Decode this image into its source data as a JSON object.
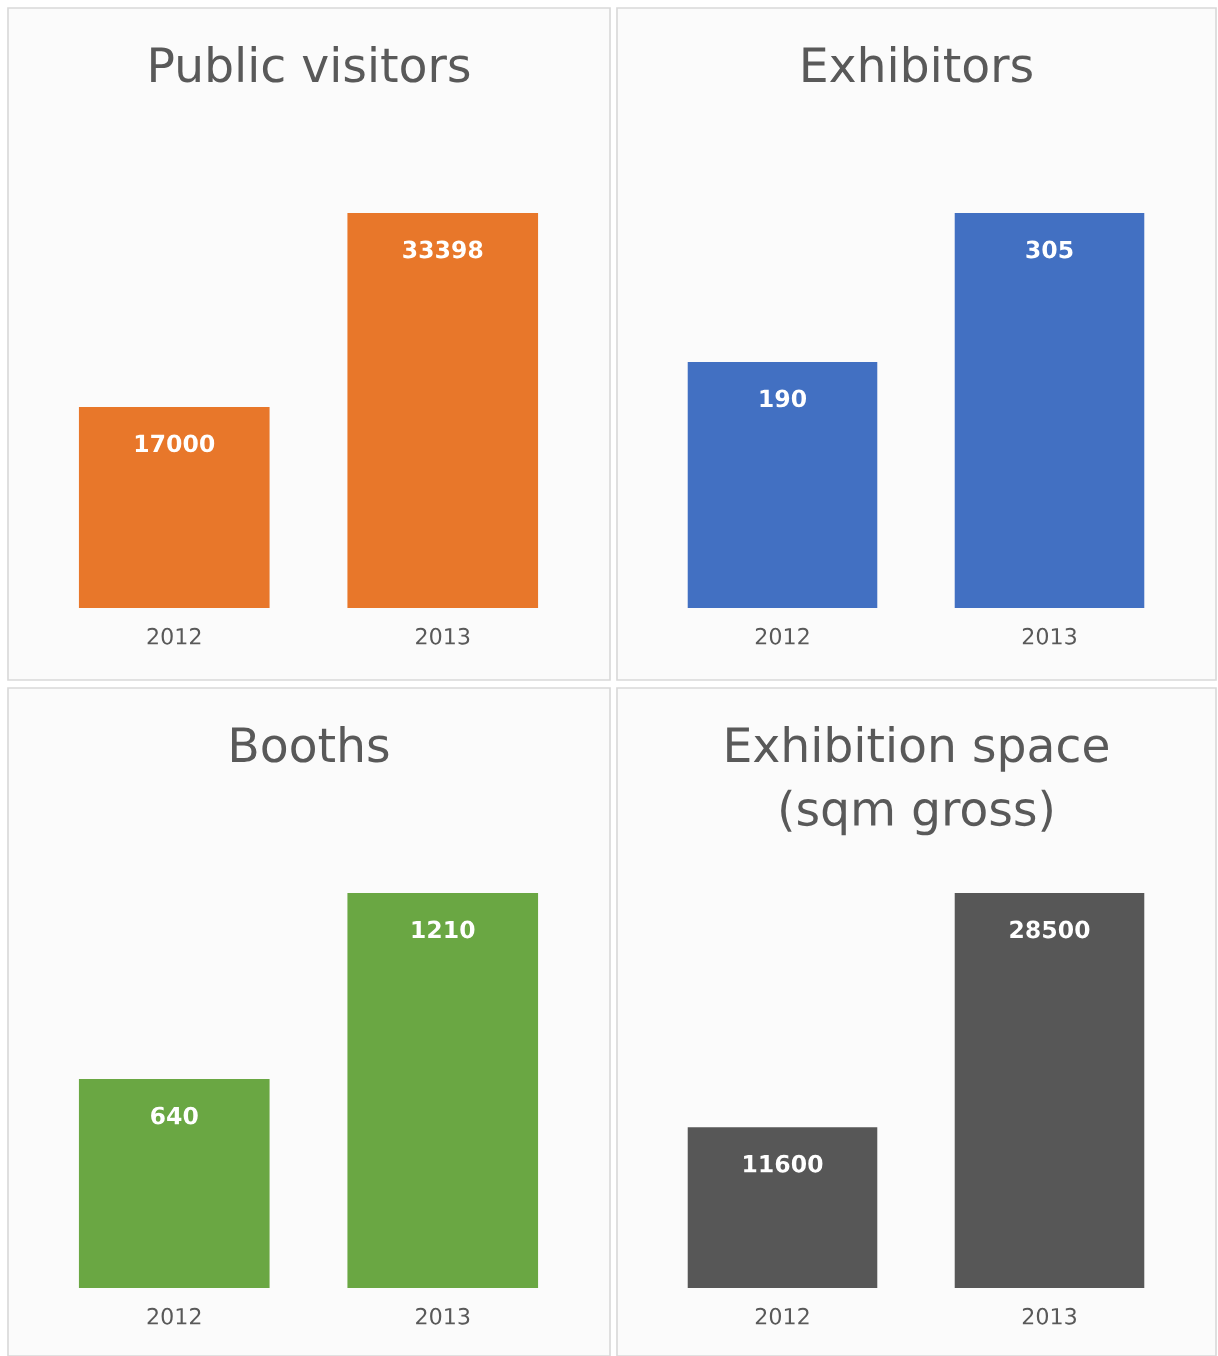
{
  "chart_data": [
    {
      "type": "bar",
      "title": "Public visitors",
      "categories": [
        "2012",
        "2013"
      ],
      "values": [
        17000,
        33398
      ],
      "color": "#e8772a",
      "data_labels": true
    },
    {
      "type": "bar",
      "title": "Exhibitors",
      "categories": [
        "2012",
        "2013"
      ],
      "values": [
        190,
        305
      ],
      "color": "#4270c2",
      "data_labels": true
    },
    {
      "type": "bar",
      "title": "Booths",
      "categories": [
        "2012",
        "2013"
      ],
      "values": [
        640,
        1210
      ],
      "color": "#6aa743",
      "data_labels": true
    },
    {
      "type": "bar",
      "title": "Exhibition space\n(sqm gross)",
      "categories": [
        "2012",
        "2013"
      ],
      "values": [
        11600,
        28500
      ],
      "color": "#575757",
      "data_labels": true
    }
  ]
}
